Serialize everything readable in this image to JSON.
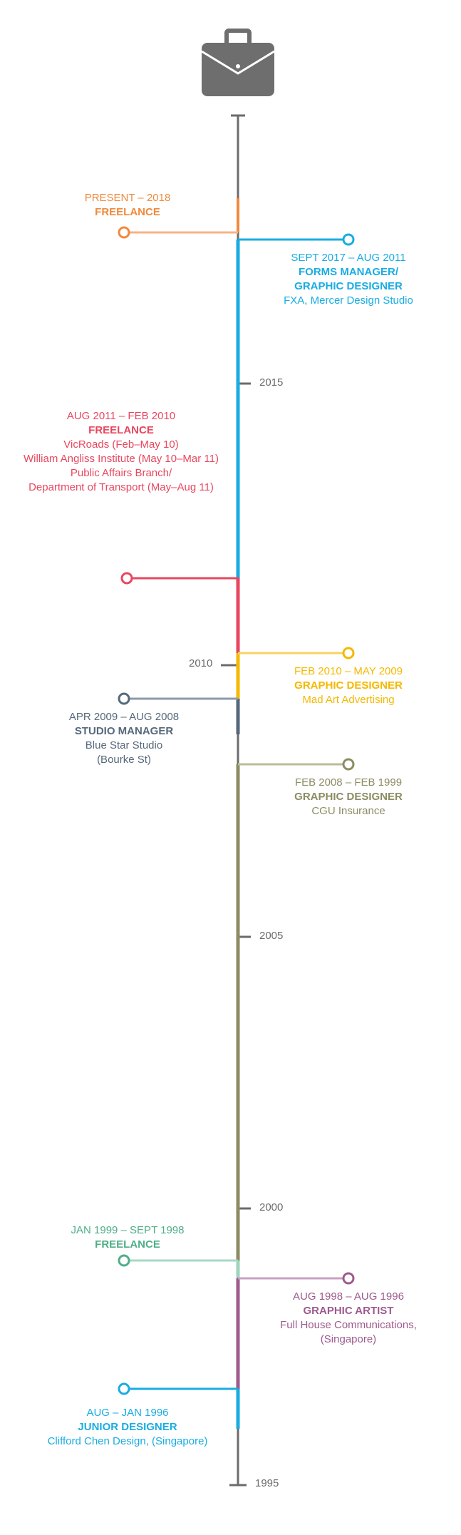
{
  "colors": {
    "axis": "#6b6b6b",
    "orange": "#f08a3c",
    "blue": "#1aace2",
    "red": "#e8475f",
    "yellow": "#f5b800",
    "slate": "#56687b",
    "olive": "#8c8c62",
    "green": "#4fae87",
    "purple": "#9e5a8d",
    "icon": "#6e6e6e"
  },
  "header": {
    "icon": "briefcase-icon"
  },
  "years": [
    {
      "label": "2015"
    },
    {
      "label": "2010"
    },
    {
      "label": "2005"
    },
    {
      "label": "2000"
    },
    {
      "label": "1995"
    }
  ],
  "entries": [
    {
      "date": "PRESENT – 2018",
      "role": "FREELANCE",
      "org": []
    },
    {
      "date": "SEPT 2017 –  AUG 2011",
      "role": "FORMS MANAGER/ GRAPHIC DESIGNER",
      "role_lines": [
        "FORMS MANAGER/",
        "GRAPHIC DESIGNER"
      ],
      "org": [
        "FXA, Mercer Design Studio"
      ]
    },
    {
      "date": "AUG 2011 – FEB 2010",
      "role": "FREELANCE",
      "org": [
        "VicRoads (Feb–May 10)",
        "William Angliss Institute (May 10–Mar 11)",
        "Public Affairs Branch/",
        "Department of Transport (May–Aug 11)"
      ]
    },
    {
      "date": "FEB 2010 – MAY 2009",
      "role": "GRAPHIC DESIGNER",
      "org": [
        "Mad Art Advertising"
      ]
    },
    {
      "date": "APR 2009 – AUG 2008",
      "role": "STUDIO MANAGER",
      "org": [
        "Blue Star Studio",
        "(Bourke St)"
      ]
    },
    {
      "date": "FEB 2008 – FEB 1999",
      "role": "GRAPHIC DESIGNER",
      "org": [
        "CGU Insurance"
      ]
    },
    {
      "date": "JAN 1999 – SEPT 1998",
      "role": "FREELANCE",
      "org": []
    },
    {
      "date": "AUG 1998 – AUG 1996",
      "role": "GRAPHIC ARTIST",
      "org": [
        "Full House Communications,",
        "(Singapore)"
      ]
    },
    {
      "date": "AUG – JAN 1996",
      "role": "JUNIOR DESIGNER",
      "org": [
        "Clifford Chen Design, (Singapore)"
      ]
    }
  ]
}
